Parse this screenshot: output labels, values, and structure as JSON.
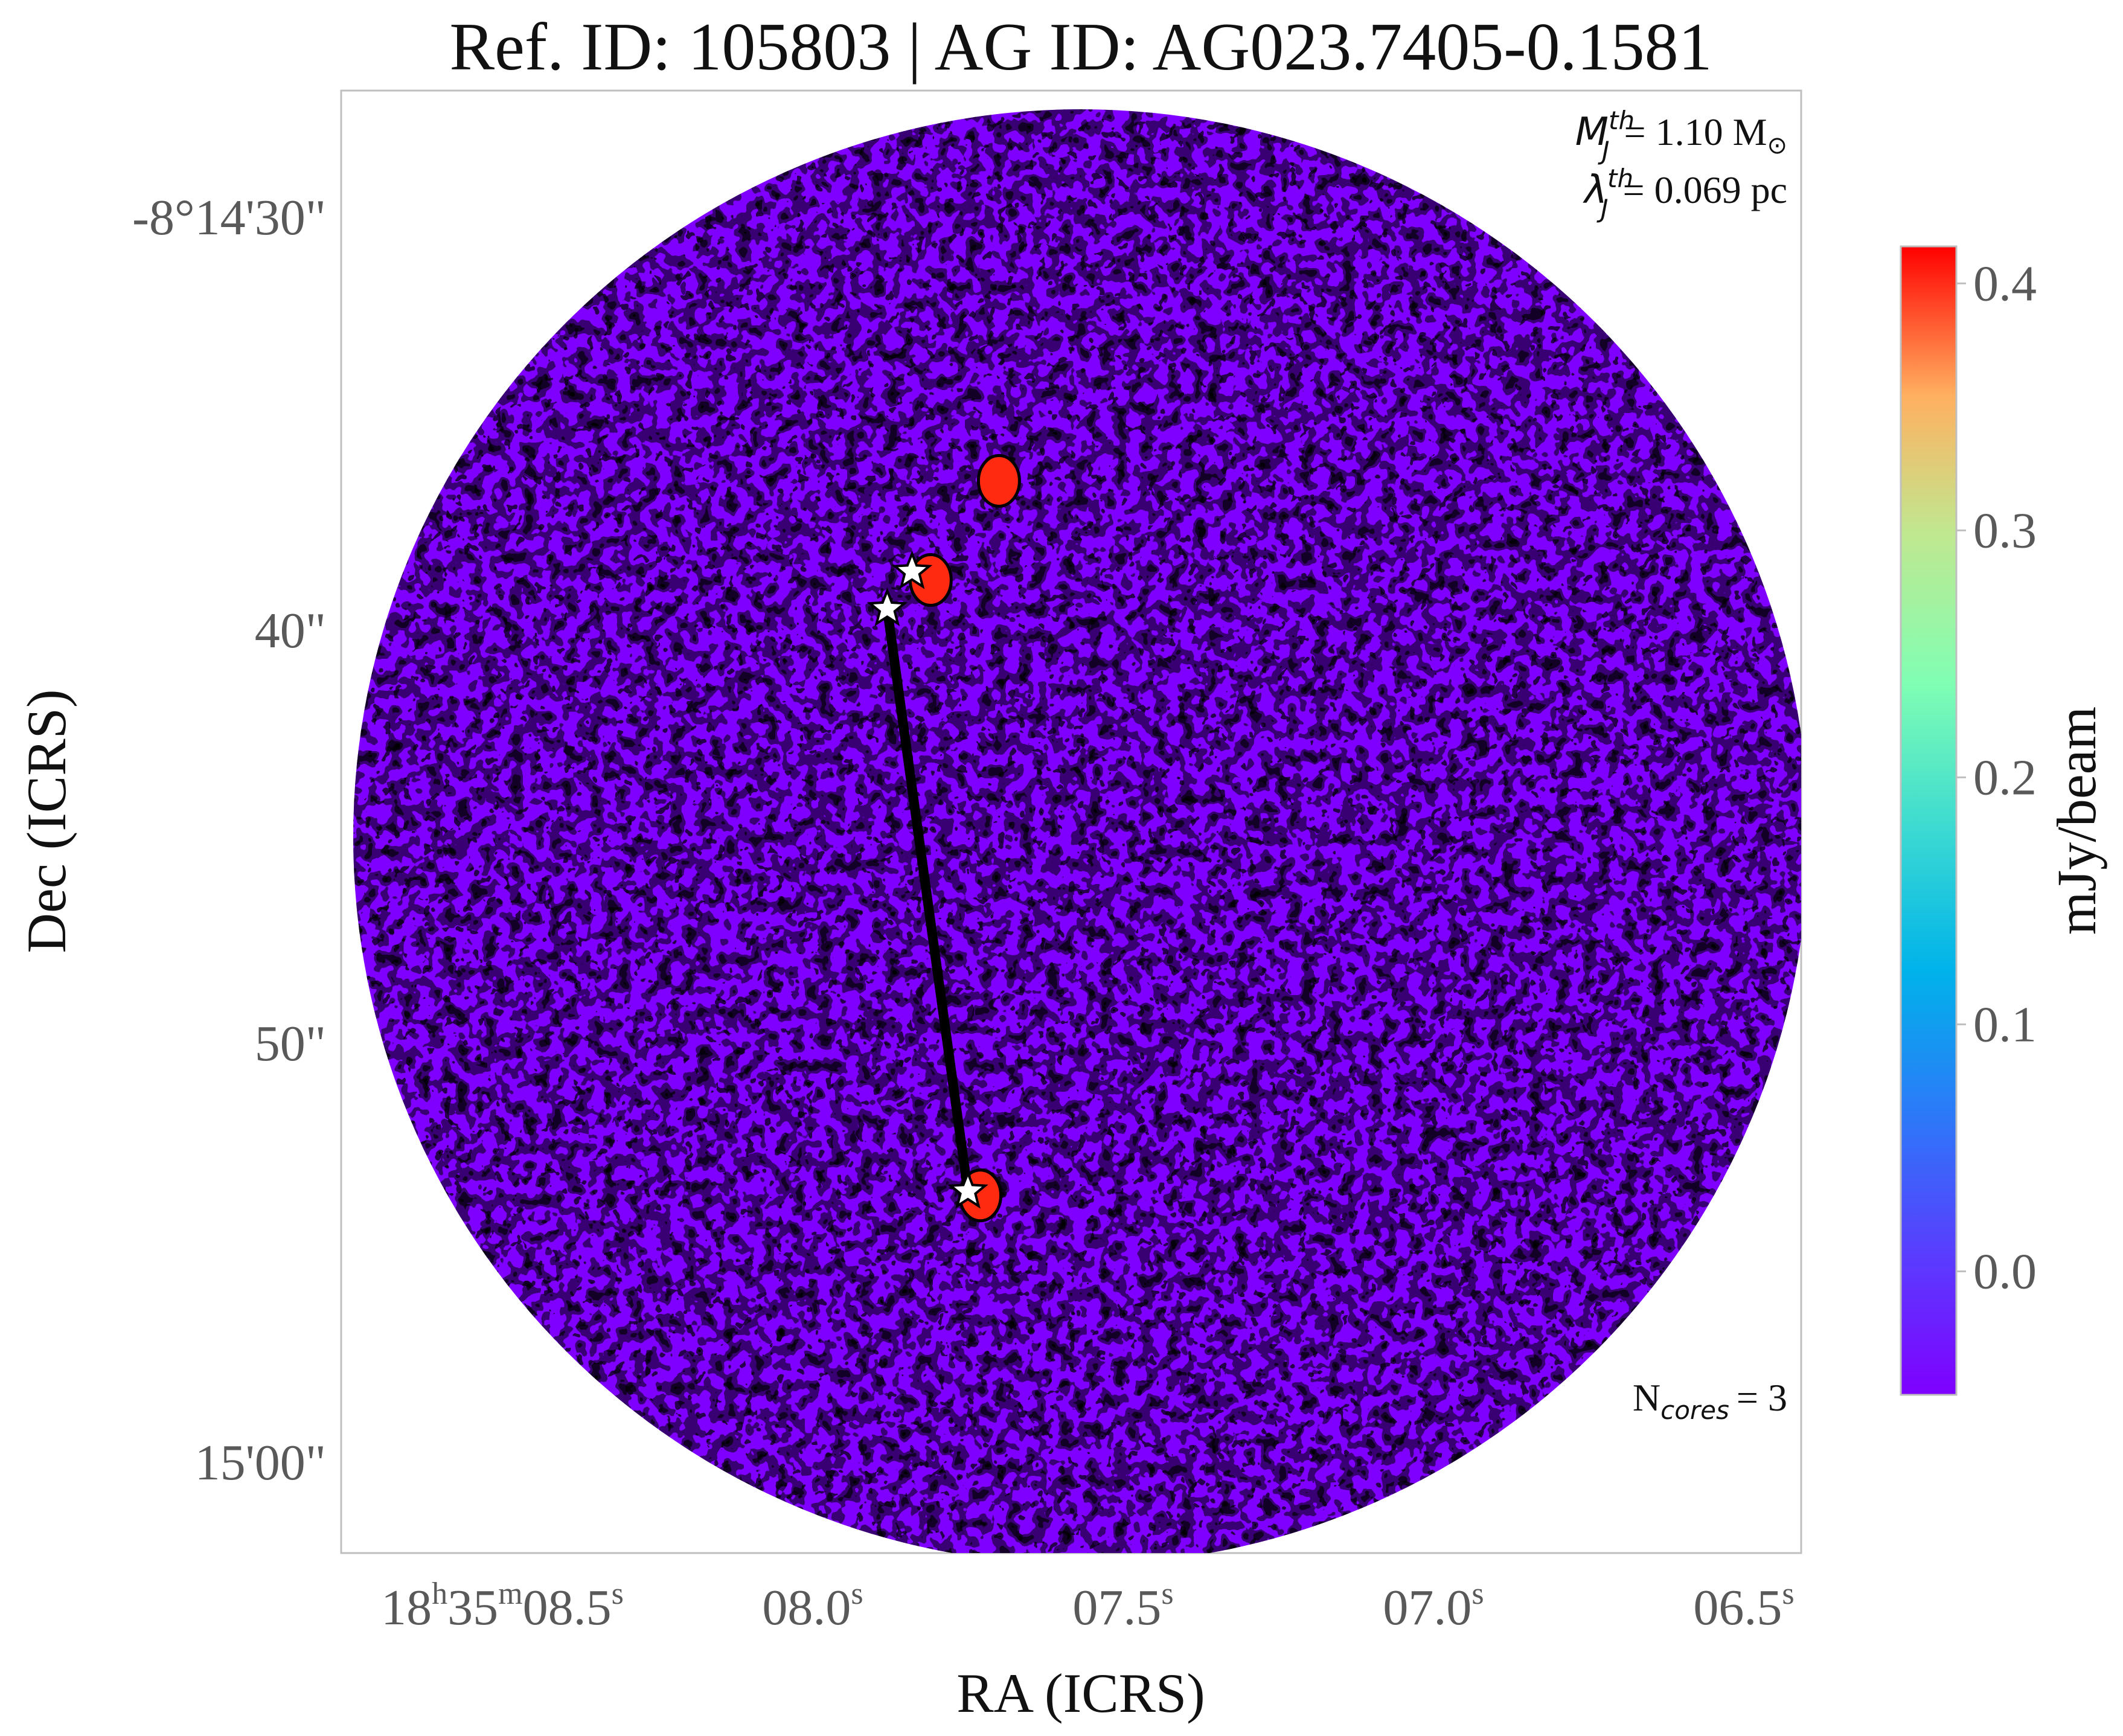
{
  "chart_data": {
    "type": "heatmap",
    "title": "Ref. ID: 105803 | AG ID: AG023.7405-0.1581",
    "xlabel": "RA (ICRS)",
    "ylabel": "Dec (ICRS)",
    "x_ticks": [
      {
        "pre": "18",
        "sup1": "h",
        "mid": "35",
        "sup2": "m",
        "main": "08.5",
        "sup3": "s"
      },
      {
        "main": "08.0",
        "sup": "s"
      },
      {
        "main": "07.5",
        "sup": "s"
      },
      {
        "main": "07.0",
        "sup": "s"
      },
      {
        "main": "06.5",
        "sup": "s"
      }
    ],
    "y_ticks": [
      "-8°14'30\"",
      "40\"",
      "50\"",
      "15'00\""
    ],
    "colorbar": {
      "label": "mJy/beam",
      "ticks": [
        "0.4",
        "0.3",
        "0.2",
        "0.1",
        "0.0"
      ],
      "tick_values": [
        0.4,
        0.3,
        0.2,
        0.1,
        0.0
      ],
      "vmin": -0.05,
      "vmax": 0.415,
      "colormap": "rainbow"
    },
    "annotations": {
      "mass_label": "= 1.10 M",
      "mass_symbol": "M",
      "mass_sup": "th",
      "mass_sub": "J",
      "sun_symbol": "⊙",
      "lambda_label": "= 0.069 pc",
      "lambda_symbol": "λ",
      "lambda_sup": "th",
      "lambda_sub": "J",
      "ncores_label": "= 3",
      "ncores_main": "N",
      "ncores_sub": "cores"
    },
    "cores": [
      {
        "ra_s": 7.84,
        "dec_arcsec": 38.2
      },
      {
        "ra_s": 7.88,
        "dec_arcsec": 39.1
      },
      {
        "ra_s": 7.75,
        "dec_arcsec": 53.2
      }
    ],
    "mst_edges": [
      [
        1,
        2
      ]
    ],
    "bright_sources": [
      {
        "ra_s": 7.7,
        "dec_arcsec": 36.0
      },
      {
        "ra_s": 7.81,
        "dec_arcsec": 38.4
      },
      {
        "ra_s": 7.73,
        "dec_arcsec": 53.3
      }
    ]
  },
  "colors": {
    "background_low": "#7f00ff",
    "noise_mid": "#3f8ff5",
    "noise_high": "#7af8d0",
    "source": "#ff2a10",
    "line": "#000000",
    "frame": "#bfbfbf"
  }
}
